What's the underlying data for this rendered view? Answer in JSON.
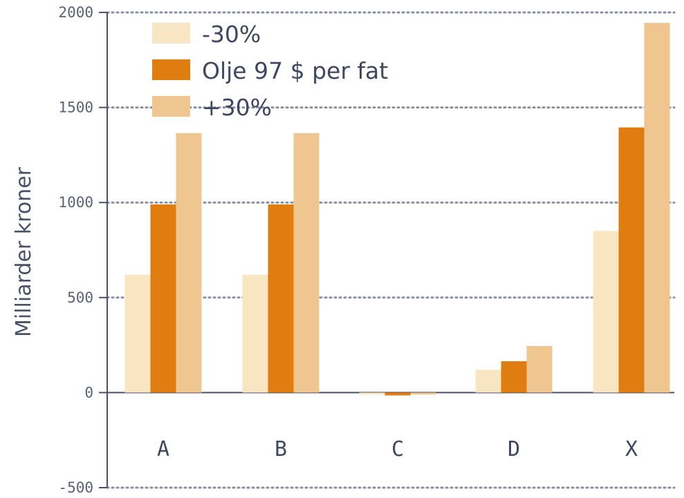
{
  "chart_data": {
    "type": "bar",
    "ylabel": "Milliarder kroner",
    "xlabel": "",
    "ylim": [
      -500,
      2000
    ],
    "yticks": [
      -500,
      0,
      500,
      1000,
      1500,
      2000
    ],
    "yticks_text": [
      "-500",
      "0",
      "500",
      "1000",
      "1500",
      "2000"
    ],
    "grid": true,
    "legend_position": "top-left",
    "categories": [
      "A",
      "B",
      "C",
      "D",
      "X"
    ],
    "series": [
      {
        "name": "-30%",
        "color": "#f8e6c3",
        "values": [
          620,
          620,
          -10,
          120,
          850
        ]
      },
      {
        "name": "Olje 97 $ per fat",
        "color": "#e07d10",
        "values": [
          990,
          990,
          -15,
          165,
          1395
        ]
      },
      {
        "name": "+30%",
        "color": "#f0c690",
        "values": [
          1365,
          1365,
          -10,
          245,
          1945
        ]
      }
    ]
  }
}
